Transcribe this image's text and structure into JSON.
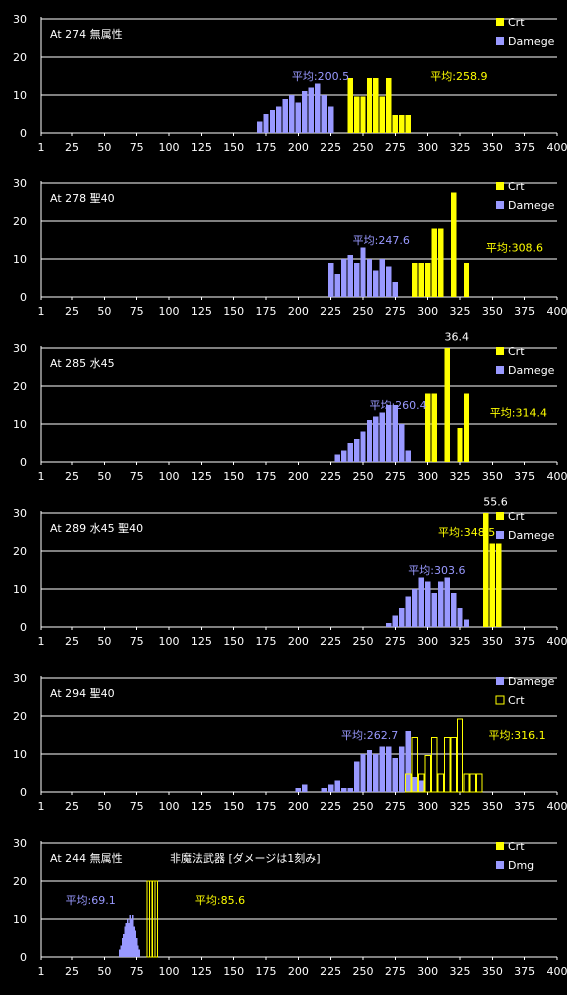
{
  "chart_data": [
    {
      "type": "bar",
      "title": "At 274  無属性",
      "subtitle": "",
      "ylim": [
        0,
        30
      ],
      "yticks": [
        0,
        10,
        20,
        30
      ],
      "xlim": [
        1,
        400
      ],
      "xticks": [
        "1",
        "25",
        "50",
        "75",
        "100",
        "125",
        "150",
        "175",
        "200",
        "225",
        "250",
        "275",
        "300",
        "325",
        "350",
        "375",
        "400"
      ],
      "legend": [
        {
          "name": "Crt",
          "color": "#ffff00",
          "style": "filled"
        },
        {
          "name": "Damege",
          "color": "#9999ff",
          "style": "filled"
        }
      ],
      "series": [
        {
          "name": "Damege",
          "color": "#9999ff",
          "style": "filled",
          "x": [
            170,
            175,
            180,
            185,
            190,
            195,
            200,
            205,
            210,
            215,
            220,
            225
          ],
          "y": [
            3,
            5,
            6,
            7,
            9,
            10,
            8,
            11,
            12,
            13,
            10,
            7
          ]
        },
        {
          "name": "Crt",
          "color": "#ffff00",
          "style": "filled",
          "x": [
            240,
            245,
            250,
            255,
            260,
            265,
            270,
            275,
            280,
            285
          ],
          "y": [
            14.5,
            9.6,
            9.6,
            14.5,
            14.5,
            9.6,
            14.5,
            4.8,
            4.8,
            4.8
          ]
        }
      ],
      "annotations": [
        {
          "text": "平均:200.5",
          "color": "#9999ff",
          "x": 195,
          "y": 14
        },
        {
          "text": "平均:258.9",
          "color": "#ffff00",
          "x": 302,
          "y": 14
        }
      ]
    },
    {
      "type": "bar",
      "title": "At 278 聖40",
      "subtitle": "",
      "ylim": [
        0,
        30
      ],
      "yticks": [
        0,
        10,
        20,
        30
      ],
      "xlim": [
        1,
        400
      ],
      "xticks": [
        "1",
        "25",
        "50",
        "75",
        "100",
        "125",
        "150",
        "175",
        "200",
        "225",
        "250",
        "275",
        "300",
        "325",
        "350",
        "375",
        "400"
      ],
      "legend": [
        {
          "name": "Crt",
          "color": "#ffff00",
          "style": "filled"
        },
        {
          "name": "Damege",
          "color": "#9999ff",
          "style": "filled"
        }
      ],
      "series": [
        {
          "name": "Damege",
          "color": "#9999ff",
          "style": "filled",
          "x": [
            225,
            230,
            235,
            240,
            245,
            250,
            255,
            260,
            265,
            270,
            275
          ],
          "y": [
            9,
            6,
            10,
            11,
            9,
            13,
            10,
            7,
            10,
            8,
            4
          ]
        },
        {
          "name": "Crt",
          "color": "#ffff00",
          "style": "filled",
          "x": [
            290,
            295,
            300,
            305,
            310,
            320,
            330
          ],
          "y": [
            9,
            9,
            9,
            18,
            18,
            27.5,
            9
          ]
        }
      ],
      "annotations": [
        {
          "text": "平均:247.6",
          "color": "#9999ff",
          "x": 242,
          "y": 14
        },
        {
          "text": "平均:308.6",
          "color": "#ffff00",
          "x": 345,
          "y": 12
        }
      ]
    },
    {
      "type": "bar",
      "title": "At 285 水45",
      "subtitle": "",
      "ylim": [
        0,
        30
      ],
      "yticks": [
        0,
        10,
        20,
        30
      ],
      "xlim": [
        1,
        400
      ],
      "xticks": [
        "1",
        "25",
        "50",
        "75",
        "100",
        "125",
        "150",
        "175",
        "200",
        "225",
        "250",
        "275",
        "300",
        "325",
        "350",
        "375",
        "400"
      ],
      "legend": [
        {
          "name": "Crt",
          "color": "#ffff00",
          "style": "filled"
        },
        {
          "name": "Damege",
          "color": "#9999ff",
          "style": "filled"
        }
      ],
      "series": [
        {
          "name": "Damege",
          "color": "#9999ff",
          "style": "filled",
          "x": [
            230,
            235,
            240,
            245,
            250,
            255,
            260,
            265,
            270,
            275,
            280,
            285
          ],
          "y": [
            2,
            3,
            5,
            6,
            8,
            11,
            12,
            13,
            15,
            15,
            10,
            3
          ]
        },
        {
          "name": "Crt",
          "color": "#ffff00",
          "style": "filled",
          "x": [
            300,
            305,
            315,
            325,
            330
          ],
          "y": [
            18,
            18,
            30,
            9,
            18
          ]
        }
      ],
      "annotations": [
        {
          "text": "36.4",
          "color": "#ffffff",
          "x": 313,
          "y": 32
        },
        {
          "text": "平均:260.4",
          "color": "#9999ff",
          "x": 255,
          "y": 14
        },
        {
          "text": "平均:314.4",
          "color": "#ffff00",
          "x": 348,
          "y": 12
        }
      ]
    },
    {
      "type": "bar",
      "title": "At 289 水45 聖40",
      "subtitle": "",
      "ylim": [
        0,
        30
      ],
      "yticks": [
        0,
        10,
        20,
        30
      ],
      "xlim": [
        1,
        400
      ],
      "xticks": [
        "1",
        "25",
        "50",
        "75",
        "100",
        "125",
        "150",
        "175",
        "200",
        "225",
        "250",
        "275",
        "300",
        "325",
        "350",
        "375",
        "400"
      ],
      "legend": [
        {
          "name": "Crt",
          "color": "#ffff00",
          "style": "filled"
        },
        {
          "name": "Damege",
          "color": "#9999ff",
          "style": "filled"
        }
      ],
      "series": [
        {
          "name": "Damege",
          "color": "#9999ff",
          "style": "filled",
          "x": [
            270,
            275,
            280,
            285,
            290,
            295,
            300,
            305,
            310,
            315,
            320,
            325,
            330
          ],
          "y": [
            1,
            3,
            5,
            8,
            10,
            13,
            12,
            9,
            12,
            13,
            9,
            5,
            2
          ]
        },
        {
          "name": "Crt",
          "color": "#ffff00",
          "style": "filled",
          "x": [
            345,
            350,
            355
          ],
          "y": [
            30,
            22,
            22
          ]
        }
      ],
      "annotations": [
        {
          "text": "55.6",
          "color": "#ffffff",
          "x": 343,
          "y": 32
        },
        {
          "text": "平均:348.5",
          "color": "#ffff00",
          "x": 308,
          "y": 24
        },
        {
          "text": "平均:303.6",
          "color": "#9999ff",
          "x": 285,
          "y": 14
        }
      ]
    },
    {
      "type": "bar",
      "title": "At 294 聖40",
      "subtitle": "",
      "ylim": [
        0,
        30
      ],
      "yticks": [
        0,
        10,
        20,
        30
      ],
      "xlim": [
        1,
        400
      ],
      "xticks": [
        "1",
        "25",
        "50",
        "75",
        "100",
        "125",
        "150",
        "175",
        "200",
        "225",
        "250",
        "275",
        "300",
        "325",
        "350",
        "375",
        "400"
      ],
      "legend": [
        {
          "name": "Damege",
          "color": "#9999ff",
          "style": "filled"
        },
        {
          "name": "Crt",
          "color": "#ffff00",
          "style": "outline"
        }
      ],
      "series": [
        {
          "name": "Damege",
          "color": "#9999ff",
          "style": "filled",
          "x": [
            200,
            205,
            220,
            225,
            230,
            235,
            240,
            245,
            250,
            255,
            260,
            265,
            270,
            275,
            280,
            285,
            290,
            295
          ],
          "y": [
            1,
            2,
            1,
            2,
            3,
            1,
            1,
            8,
            10,
            11,
            10,
            12,
            12,
            9,
            12,
            16,
            4,
            3
          ]
        },
        {
          "name": "Crt",
          "color": "#ffff00",
          "style": "outline",
          "x": [
            285,
            290,
            295,
            300,
            305,
            310,
            315,
            320,
            325,
            330,
            335,
            340
          ],
          "y": [
            4.8,
            14.4,
            4.8,
            9.6,
            14.4,
            4.8,
            14.4,
            14.4,
            19.2,
            4.8,
            4.8,
            4.8
          ]
        }
      ],
      "annotations": [
        {
          "text": "平均:262.7",
          "color": "#9999ff",
          "x": 233,
          "y": 14
        },
        {
          "text": "平均:316.1",
          "color": "#ffff00",
          "x": 347,
          "y": 14
        }
      ]
    },
    {
      "type": "bar",
      "title": "At 244 無属性",
      "subtitle": "非魔法武器 [ダメージは1刻み]",
      "ylim": [
        0,
        30
      ],
      "yticks": [
        0,
        10,
        20,
        30
      ],
      "xlim": [
        1,
        400
      ],
      "xticks": [
        "1",
        "25",
        "50",
        "75",
        "100",
        "125",
        "150",
        "175",
        "200",
        "225",
        "250",
        "275",
        "300",
        "325",
        "350",
        "375",
        "400"
      ],
      "legend": [
        {
          "name": "Crt",
          "color": "#ffff00",
          "style": "filled"
        },
        {
          "name": "Dmg",
          "color": "#9999ff",
          "style": "filled"
        }
      ],
      "series": [
        {
          "name": "Dmg",
          "color": "#9999ff",
          "style": "filled",
          "x": [
            62,
            63,
            64,
            65,
            66,
            67,
            68,
            69,
            70,
            71,
            72,
            73,
            74,
            75,
            76,
            77
          ],
          "y": [
            2,
            3,
            5,
            6,
            8,
            9,
            10,
            9,
            11,
            10,
            11,
            8,
            7,
            5,
            3,
            2
          ]
        },
        {
          "name": "Crt",
          "color": "#ffff00",
          "style": "outline",
          "x": [
            84,
            86,
            88,
            90
          ],
          "y": [
            20,
            20,
            20,
            20
          ]
        }
      ],
      "annotations": [
        {
          "text": "平均:69.1",
          "color": "#9999ff",
          "x": 20,
          "y": 14
        },
        {
          "text": "平均:85.6",
          "color": "#ffff00",
          "x": 120,
          "y": 14
        }
      ]
    }
  ]
}
